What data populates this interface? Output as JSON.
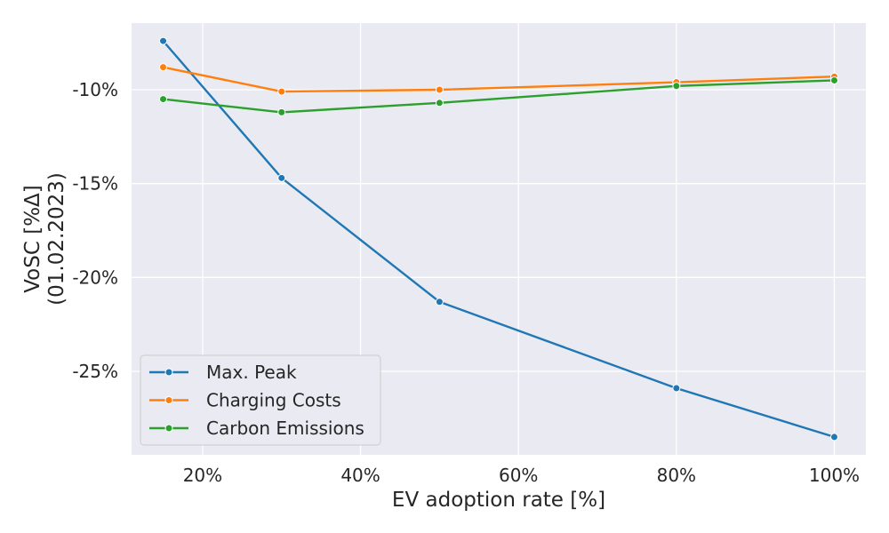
{
  "chart_data": {
    "type": "line",
    "xlabel": "EV adoption rate [%]",
    "ylabel_lines": [
      "VoSC [%Δ]",
      "(01.02.2023)"
    ],
    "xlim": [
      11,
      104
    ],
    "ylim": [
      -29.45,
      -6.45
    ],
    "xticks": [
      20,
      40,
      60,
      80,
      100
    ],
    "xtick_labels": [
      "20%",
      "40%",
      "60%",
      "80%",
      "100%"
    ],
    "yticks": [
      -10,
      -15,
      -20,
      -25
    ],
    "ytick_labels": [
      "-10%",
      "-15%",
      "-20%",
      "-25%"
    ],
    "grid": true,
    "legend_position": "lower-left",
    "x": [
      15,
      30,
      50,
      80,
      100
    ],
    "series": [
      {
        "name": "Max. Peak",
        "color": "#1f77b4",
        "values": [
          -7.4,
          -14.7,
          -21.3,
          -25.9,
          -28.5
        ]
      },
      {
        "name": "Charging Costs",
        "color": "#ff7f0e",
        "values": [
          -8.8,
          -10.1,
          -10.0,
          -9.6,
          -9.3
        ]
      },
      {
        "name": "Carbon Emissions",
        "color": "#2ca02c",
        "values": [
          -10.5,
          -11.2,
          -10.7,
          -9.8,
          -9.5
        ]
      }
    ]
  }
}
